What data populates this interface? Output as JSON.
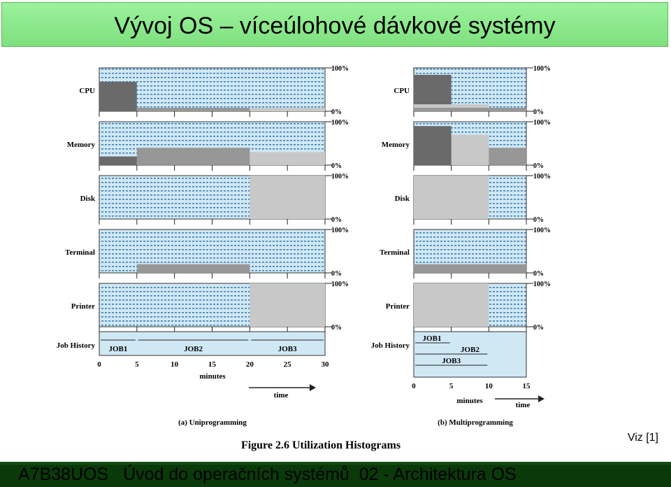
{
  "slide": {
    "title": "Vývoj OS – víceúlohové dávkové systémy",
    "reference": "Viz [1]",
    "footer": "A7B38UOS   Úvod do operačních systémů  02 - Architektura OS"
  },
  "figure": {
    "caption": "Figure 2.6  Utilization Histograms",
    "pct_top": "100%",
    "pct_bottom": "0%",
    "resources": [
      "CPU",
      "Memory",
      "Disk",
      "Terminal",
      "Printer"
    ],
    "job_history_label": "Job History",
    "time_label": "time",
    "minutes_label": "minutes",
    "colors": {
      "panel_bg": "#cfe8f4",
      "dots": "#3a78b0",
      "dark": "#6a6a6a",
      "mid": "#979797",
      "light": "#c8c8c8",
      "job_bg": "#cfe8f4"
    },
    "uni": {
      "subcaption": "(a) Uniprogramming",
      "ticks": [
        "0",
        "5",
        "10",
        "15",
        "20",
        "25",
        "30"
      ],
      "jobs": [
        "JOB1",
        "JOB2",
        "JOB3"
      ],
      "x_max": 30,
      "bars": {
        "CPU": [
          {
            "from": 0,
            "to": 5,
            "level": 0.68,
            "shade": "dark"
          },
          {
            "from": 5,
            "to": 20,
            "level": 0.08,
            "shade": "mid"
          },
          {
            "from": 20,
            "to": 30,
            "level": 0.08,
            "shade": "light"
          }
        ],
        "Memory": [
          {
            "from": 0,
            "to": 5,
            "level": 0.2,
            "shade": "dark"
          },
          {
            "from": 5,
            "to": 20,
            "level": 0.4,
            "shade": "mid"
          },
          {
            "from": 20,
            "to": 30,
            "level": 0.3,
            "shade": "light"
          }
        ],
        "Disk": [
          {
            "from": 20,
            "to": 30,
            "level": 1,
            "shade": "light"
          }
        ],
        "Terminal": [
          {
            "from": 5,
            "to": 20,
            "level": 0.2,
            "shade": "mid"
          }
        ],
        "Printer": [
          {
            "from": 20,
            "to": 30,
            "level": 1,
            "shade": "light"
          }
        ]
      }
    },
    "multi": {
      "subcaption": "(b) Multiprogramming",
      "ticks": [
        "0",
        "5",
        "10",
        "15"
      ],
      "jobs": [
        "JOB1",
        "JOB2",
        "JOB3"
      ],
      "x_max": 15,
      "bars": {
        "CPU": [
          {
            "from": 0,
            "to": 5,
            "level": 0.84,
            "shade": "dark"
          },
          {
            "from": 0,
            "to": 10,
            "level": 0.16,
            "shade": "light"
          },
          {
            "from": 0,
            "to": 15,
            "level": 0.08,
            "shade": "mid"
          }
        ],
        "Memory": [
          {
            "from": 0,
            "to": 15,
            "level": 0.4,
            "shade": "mid"
          },
          {
            "from": 0,
            "to": 10,
            "level": 0.7,
            "shade": "light"
          },
          {
            "from": 0,
            "to": 5,
            "level": 0.9,
            "shade": "dark"
          }
        ],
        "Disk": [
          {
            "from": 0,
            "to": 10,
            "level": 1,
            "shade": "light"
          }
        ],
        "Terminal": [
          {
            "from": 0,
            "to": 15,
            "level": 0.2,
            "shade": "mid"
          }
        ],
        "Printer": [
          {
            "from": 0,
            "to": 10,
            "level": 1,
            "shade": "light"
          }
        ]
      }
    }
  }
}
